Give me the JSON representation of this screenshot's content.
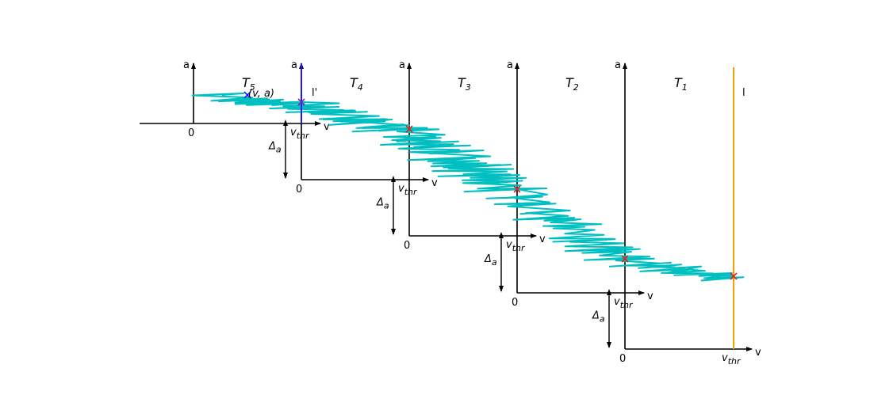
{
  "colors": {
    "axis": "#000000",
    "trajectory": "#00bfc0",
    "cross": "#e02020",
    "blue": "#1a1aff",
    "orange": "#f0a000",
    "purple": "#6a2ab0"
  },
  "labels": {
    "axis_a": "a",
    "axis_v": "v",
    "origin": "0",
    "vthr_base": "v",
    "vthr_sub": "thr",
    "delta_base": "Δ",
    "delta_sub": "a",
    "point_label": "(v, a)",
    "blue_line": "l'",
    "orange_line": "l",
    "segments": [
      {
        "base": "T",
        "sub": "5"
      },
      {
        "base": "T",
        "sub": "4"
      },
      {
        "base": "T",
        "sub": "3"
      },
      {
        "base": "T",
        "sub": "2"
      },
      {
        "base": "T",
        "sub": "1"
      }
    ]
  }
}
